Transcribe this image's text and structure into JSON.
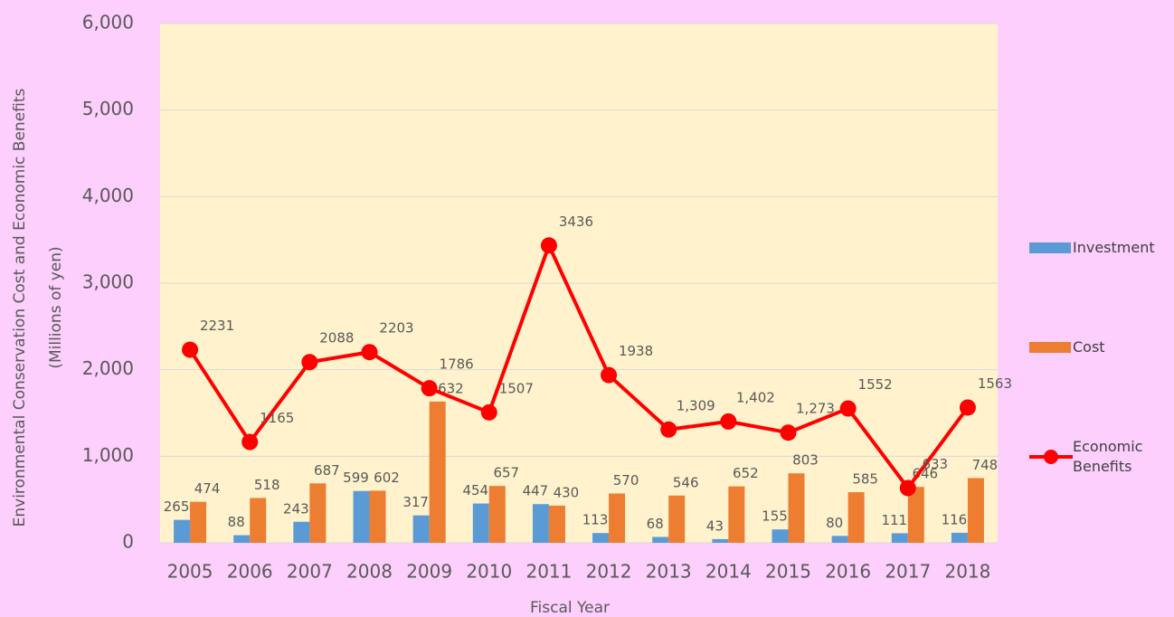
{
  "chart_data": {
    "type": "bar_line",
    "xlabel": "Fiscal Year",
    "ylabel": [
      "Environmental Conservation Cost and Economic Benefits",
      "(Millions of yen)"
    ],
    "categories": [
      "2005",
      "2006",
      "2007",
      "2008",
      "2009",
      "2010",
      "2011",
      "2012",
      "2013",
      "2014",
      "2015",
      "2016",
      "2017",
      "2018"
    ],
    "series": [
      {
        "name": "Investment",
        "type": "bar",
        "color": "#5b9bd5",
        "values": [
          265,
          88,
          243,
          599,
          317,
          454,
          447,
          113,
          68,
          43,
          155,
          80,
          111,
          116
        ]
      },
      {
        "name": "Cost",
        "type": "bar",
        "color": "#ed7d31",
        "values": [
          474,
          518,
          687,
          602,
          1632,
          657,
          430,
          570,
          546,
          652,
          803,
          585,
          646,
          748
        ]
      },
      {
        "name": "Economic Benefits",
        "type": "line",
        "color": "#ff0000",
        "values": [
          2231,
          1165,
          2088,
          2203,
          1786,
          1507,
          3436,
          1938,
          1309,
          1402,
          1273,
          1552,
          633,
          1563
        ],
        "value_labels": [
          "2231",
          "1165",
          "2088",
          "2203",
          "1786",
          "1507",
          "3436",
          "1938",
          "1,309",
          "1,402",
          "1,273",
          "1552",
          "633",
          "1563"
        ]
      }
    ],
    "ylim": [
      0,
      6000
    ],
    "yticks": [
      0,
      {
        "value": 1000,
        "label": "1,000"
      },
      {
        "value": 2000,
        "label": "2,000"
      },
      {
        "value": 3000,
        "label": "3,000"
      },
      {
        "value": 4000,
        "label": "4,000"
      },
      {
        "value": 5000,
        "label": "5,000"
      },
      {
        "value": 6000,
        "label": "6,000"
      }
    ],
    "grid": true,
    "legend": "right"
  }
}
